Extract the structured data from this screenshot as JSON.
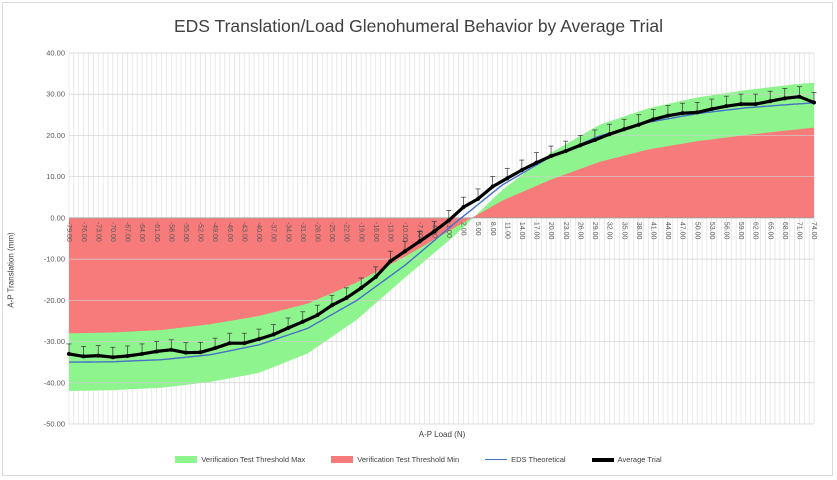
{
  "chart_data": {
    "type": "area",
    "title": "EDS Translation/Load Glenohumeral Behavior by Average Trial",
    "xlabel": "A-P Load (N)",
    "ylabel": "A-P Translation (mm)",
    "ylim": [
      -50,
      40
    ],
    "y_ticks": [
      "40.00",
      "30.00",
      "20.00",
      "10.00",
      "0.00",
      "-10.00",
      "-20.00",
      "-30.00",
      "-40.00",
      "-50.00"
    ],
    "x_range": [
      -79,
      74
    ],
    "x_step": 1,
    "x_tick_labels": [
      "-79.00",
      "-76.00",
      "-73.00",
      "-70.00",
      "-67.00",
      "-64.00",
      "-61.00",
      "-58.00",
      "-55.00",
      "-52.00",
      "-49.00",
      "-46.00",
      "-43.00",
      "-40.00",
      "-37.00",
      "-34.00",
      "-31.00",
      "-28.00",
      "-25.00",
      "-22.00",
      "-19.00",
      "-16.00",
      "-13.00",
      "-10.00",
      "-7.00",
      "-4.00",
      "-1.00",
      "2.00",
      "5.00",
      "8.00",
      "11.00",
      "14.00",
      "17.00",
      "20.00",
      "23.00",
      "26.00",
      "29.00",
      "32.00",
      "35.00",
      "38.00",
      "41.00",
      "44.00",
      "47.00",
      "50.00",
      "53.00",
      "56.00",
      "59.00",
      "62.00",
      "65.00",
      "68.00",
      "71.00",
      "74.00"
    ],
    "grid": true,
    "legend_position": "bottom",
    "series": [
      {
        "name": "Verification Test Threshold Max",
        "kind": "area",
        "color": "#8ef58e",
        "x": [
          -79,
          -70,
          -60,
          -50,
          -40,
          -30,
          -20,
          -10,
          0,
          10,
          20,
          30,
          40,
          50,
          60,
          70,
          74
        ],
        "values": [
          -42,
          -41.8,
          -41.2,
          -39.8,
          -37.6,
          -32.9,
          -24.8,
          -14.5,
          -4.5,
          6.8,
          15.8,
          22.6,
          26.6,
          29.2,
          31.0,
          32.4,
          32.8
        ]
      },
      {
        "name": "Verification Test Threshold Min",
        "kind": "area",
        "color": "#f77b7b",
        "x": [
          -79,
          -70,
          -60,
          -50,
          -40,
          -30,
          -20,
          -10,
          0,
          10,
          20,
          30,
          40,
          50,
          60,
          70,
          74
        ],
        "values": [
          -28,
          -27.8,
          -27.2,
          -25.8,
          -23.8,
          -20.8,
          -15.7,
          -9.4,
          -2.5,
          4.2,
          9.3,
          13.6,
          16.6,
          18.6,
          20.1,
          21.4,
          21.9
        ]
      },
      {
        "name": "EDS Theoretical",
        "kind": "line",
        "color": "#4472c4",
        "x": [
          -79,
          -70,
          -60,
          -50,
          -40,
          -30,
          -20,
          -10,
          0,
          10,
          20,
          30,
          40,
          50,
          60,
          70,
          74
        ],
        "values": [
          -35,
          -34.9,
          -34.4,
          -33.2,
          -30.8,
          -26.8,
          -20.1,
          -11.5,
          -1.5,
          8.0,
          14.9,
          19.9,
          23.2,
          25.3,
          26.7,
          27.6,
          27.9
        ]
      },
      {
        "name": "Average Trial",
        "kind": "line",
        "color": "#000000",
        "error_bars": true,
        "x": [
          -79,
          -76,
          -73,
          -70,
          -67,
          -64,
          -61,
          -58,
          -55,
          -52,
          -49,
          -46,
          -43,
          -40,
          -37,
          -34,
          -31,
          -28,
          -25,
          -22,
          -19,
          -16,
          -13,
          -10,
          -7,
          -4,
          -1,
          2,
          5,
          8,
          11,
          14,
          17,
          20,
          23,
          26,
          29,
          32,
          35,
          38,
          41,
          44,
          47,
          50,
          53,
          56,
          59,
          62,
          65,
          68,
          71,
          74
        ],
        "values": [
          -33.0,
          -33.6,
          -33.4,
          -33.8,
          -33.5,
          -33.0,
          -32.4,
          -32.0,
          -32.7,
          -32.6,
          -31.6,
          -30.4,
          -30.4,
          -29.4,
          -28.3,
          -26.7,
          -25.2,
          -23.6,
          -21.2,
          -19.4,
          -17.0,
          -14.3,
          -10.5,
          -8.1,
          -5.7,
          -3.3,
          -0.6,
          2.6,
          4.6,
          7.6,
          9.6,
          11.6,
          13.4,
          15.0,
          16.2,
          17.6,
          18.9,
          20.3,
          21.5,
          22.6,
          23.9,
          24.8,
          25.4,
          25.6,
          26.4,
          27.1,
          27.6,
          27.6,
          28.3,
          29.0,
          29.4,
          28.0
        ]
      }
    ]
  }
}
